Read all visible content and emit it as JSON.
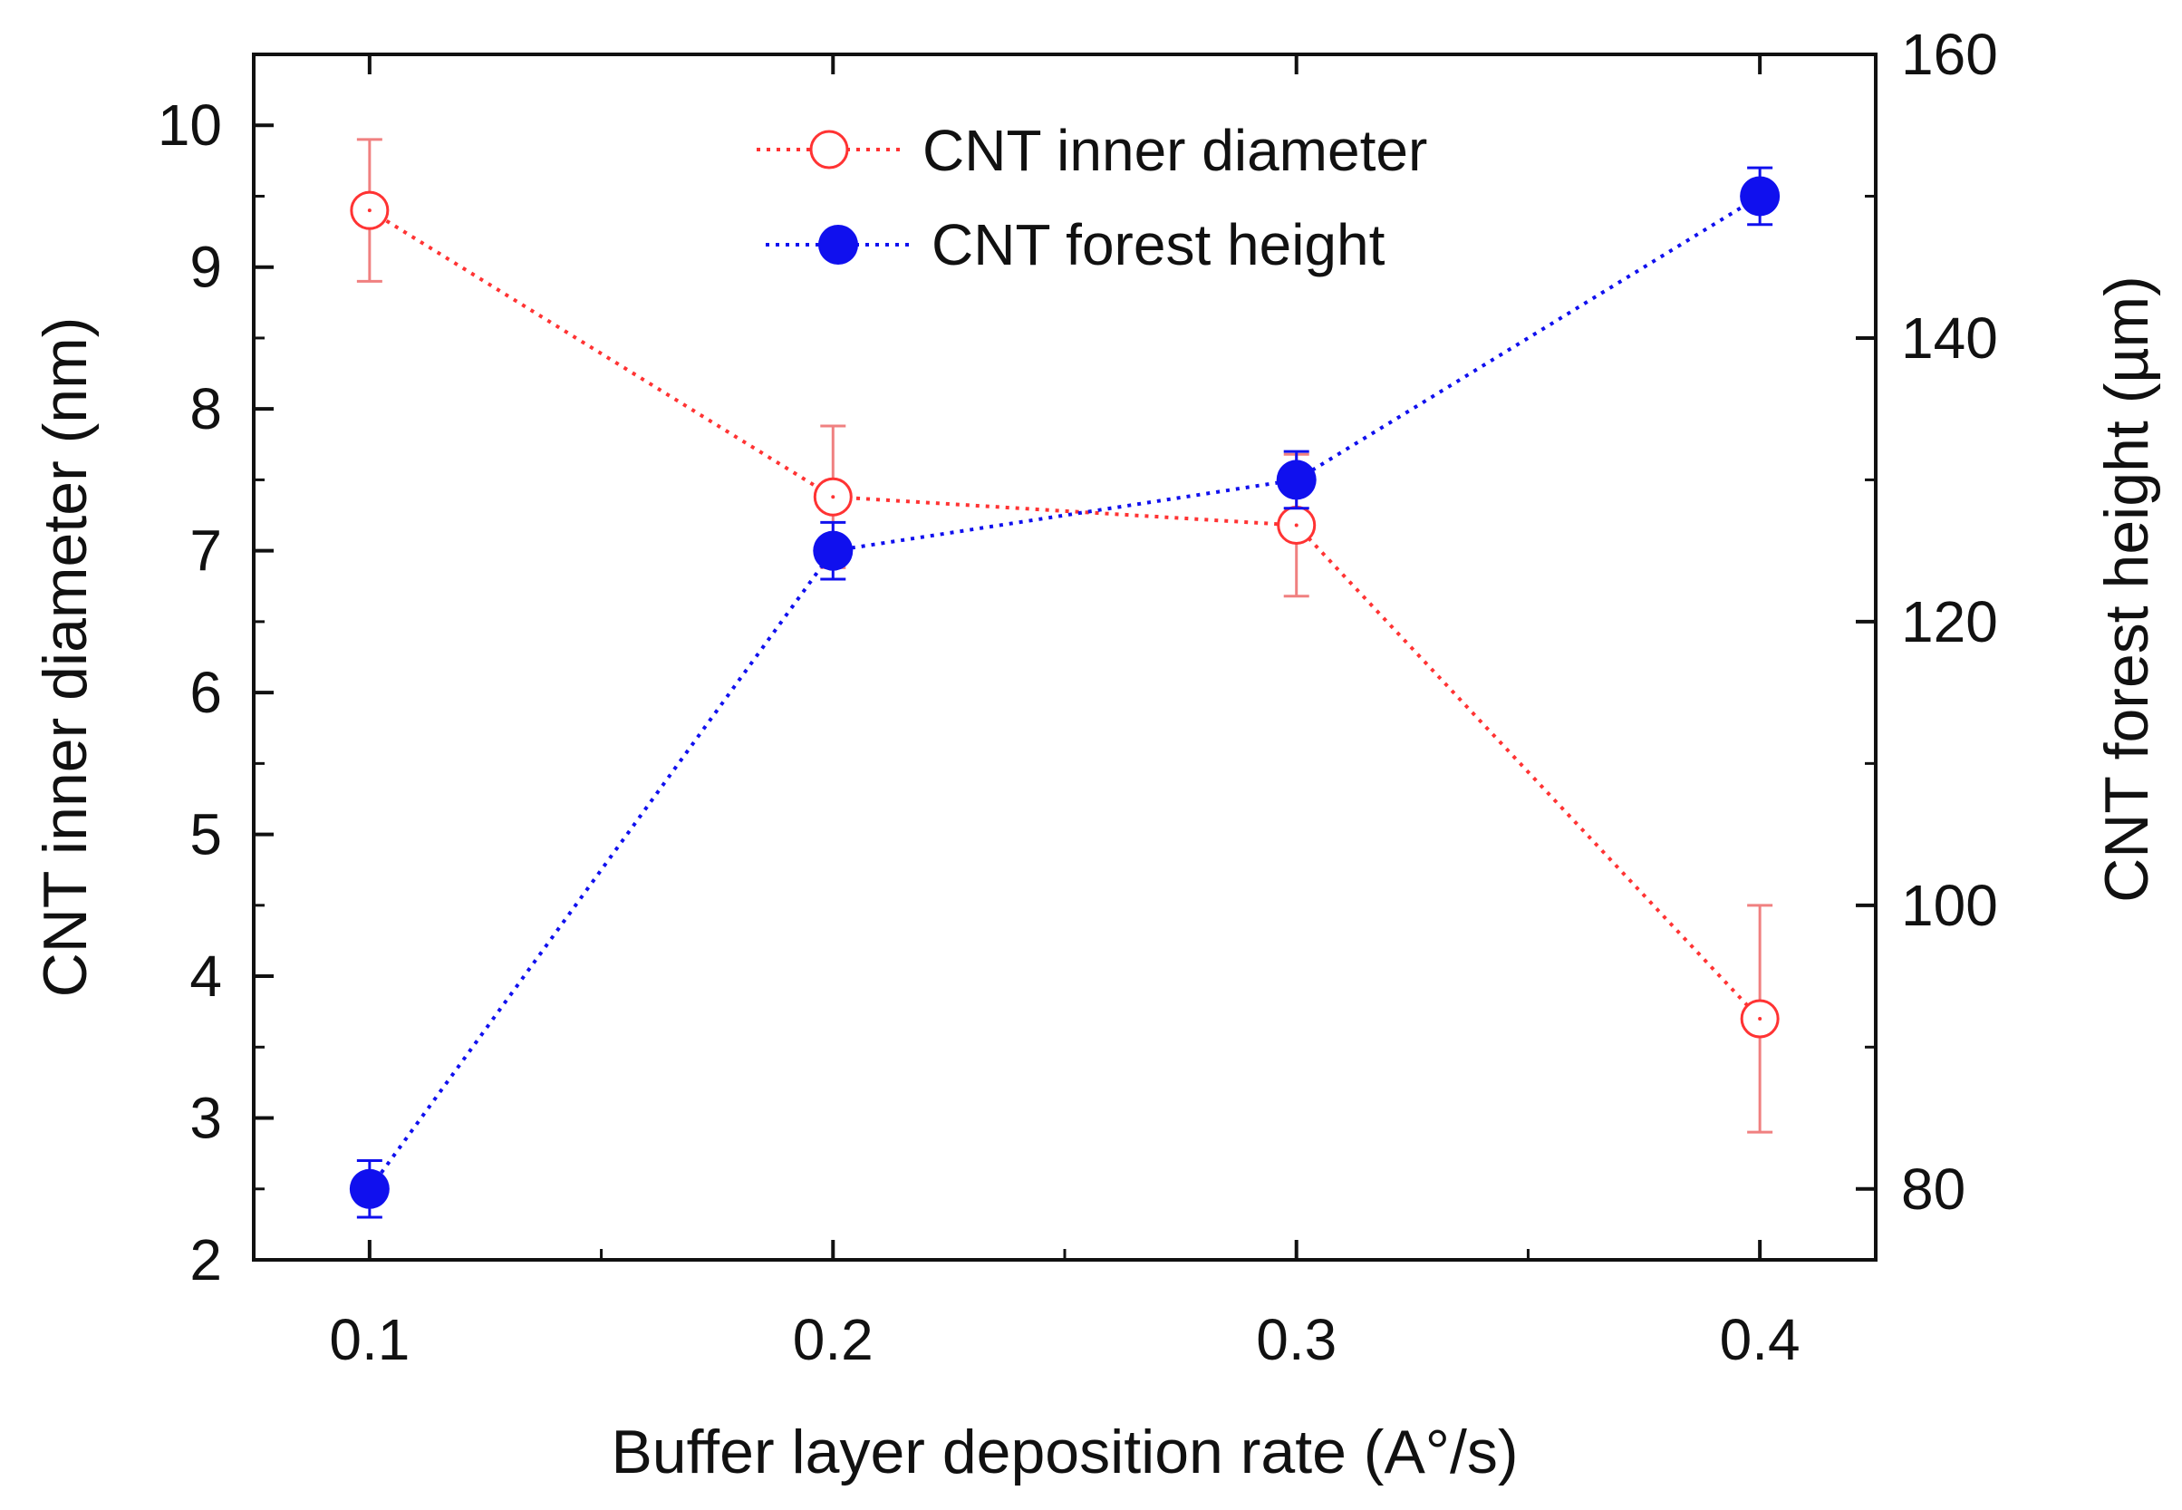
{
  "chart_data": {
    "type": "line",
    "title": "",
    "x": [
      0.1,
      0.2,
      0.3,
      0.4
    ],
    "x_tick_labels": [
      "0.1",
      "0.2",
      "0.3",
      "0.4"
    ],
    "xlabel": "Buffer layer deposition rate (A°/s)",
    "xlim": [
      0.075,
      0.425
    ],
    "y_left": {
      "label": "CNT inner diameter (nm)",
      "lim": [
        2,
        10.5
      ],
      "ticks": [
        2,
        3,
        4,
        5,
        6,
        7,
        8,
        9,
        10
      ],
      "tick_labels": [
        "2",
        "3",
        "4",
        "5",
        "6",
        "7",
        "8",
        "9",
        "10"
      ]
    },
    "y_right": {
      "label": "CNT forest height (µm)",
      "lim": [
        75,
        160
      ],
      "ticks": [
        80,
        100,
        120,
        140,
        160
      ],
      "tick_labels": [
        "80",
        "100",
        "120",
        "140",
        "160"
      ]
    },
    "series": [
      {
        "name": "CNT inner diameter",
        "axis": "left",
        "color": "#ff3333",
        "marker": "open-circle",
        "line": "dotted",
        "values": [
          9.4,
          7.38,
          7.18,
          3.7
        ],
        "errors": [
          0.5,
          0.5,
          0.5,
          0.8
        ]
      },
      {
        "name": "CNT forest height",
        "axis": "right",
        "color": "#1010ee",
        "marker": "filled-circle",
        "line": "dotted",
        "values": [
          80,
          125,
          130,
          150
        ],
        "errors": [
          2,
          2,
          2,
          2
        ]
      }
    ],
    "legend": {
      "position": "top-center",
      "items": [
        "CNT inner diameter",
        "CNT forest height"
      ]
    },
    "grid": false
  }
}
